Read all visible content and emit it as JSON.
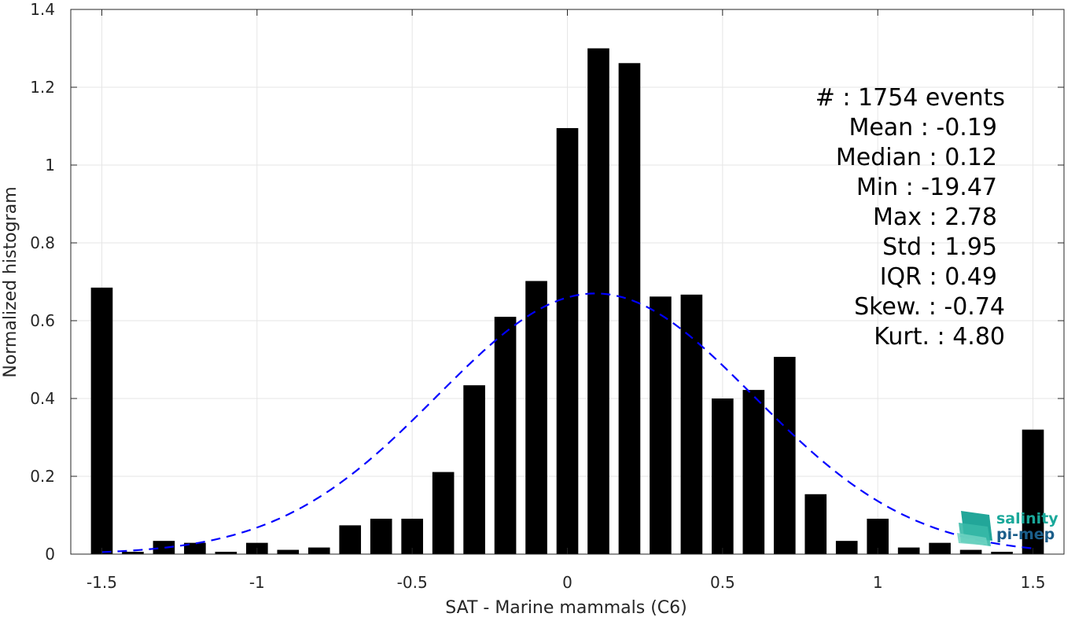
{
  "chart_data": {
    "type": "bar",
    "xlabel": "SAT - Marine mammals (C6)",
    "ylabel": "Normalized histogram",
    "xlim": [
      -1.6,
      1.6
    ],
    "ylim": [
      0,
      1.4
    ],
    "grid": true,
    "x_ticks": [
      "-1.5",
      "-1",
      "-0.5",
      "0",
      "0.5",
      "1",
      "1.5"
    ],
    "y_ticks": [
      "0",
      "0.2",
      "0.4",
      "0.6",
      "0.8",
      "1",
      "1.2",
      "1.4"
    ],
    "bar_width": 0.07,
    "bar_color": "#000000",
    "bins": [
      -1.5,
      -1.4,
      -1.3,
      -1.2,
      -1.1,
      -1.0,
      -0.9,
      -0.8,
      -0.7,
      -0.6,
      -0.5,
      -0.4,
      -0.3,
      -0.2,
      -0.1,
      0.0,
      0.1,
      0.2,
      0.3,
      0.4,
      0.5,
      0.6,
      0.7,
      0.8,
      0.9,
      1.0,
      1.1,
      1.2,
      1.3,
      1.4,
      1.5
    ],
    "values": [
      0.685,
      0.006,
      0.034,
      0.029,
      0.006,
      0.029,
      0.011,
      0.017,
      0.074,
      0.091,
      0.091,
      0.211,
      0.434,
      0.61,
      0.702,
      1.095,
      1.3,
      1.262,
      0.662,
      0.667,
      0.4,
      0.422,
      0.507,
      0.154,
      0.034,
      0.091,
      0.017,
      0.029,
      0.011,
      0.006,
      0.32
    ],
    "fit": {
      "type": "gaussian",
      "mean": 0.09,
      "peak": 0.67,
      "sigma": 0.51,
      "x_range": [
        -1.5,
        1.5
      ],
      "color": "#0000ff",
      "style": "dashed"
    }
  },
  "stats": [
    {
      "label": "#  : 1754 events"
    },
    {
      "label": "Mean : -0.19"
    },
    {
      "label": "Median : 0.12"
    },
    {
      "label": "Min : -19.47"
    },
    {
      "label": "Max : 2.78"
    },
    {
      "label": "Std : 1.95"
    },
    {
      "label": "IQR : 0.49"
    },
    {
      "label": "Skew. : -0.74"
    },
    {
      "label": "Kurt. : 4.80"
    }
  ],
  "logo": {
    "line1": "salinity",
    "line2": "pi-mep",
    "color1": "#1aa89a",
    "color2": "#1b5e8a"
  }
}
